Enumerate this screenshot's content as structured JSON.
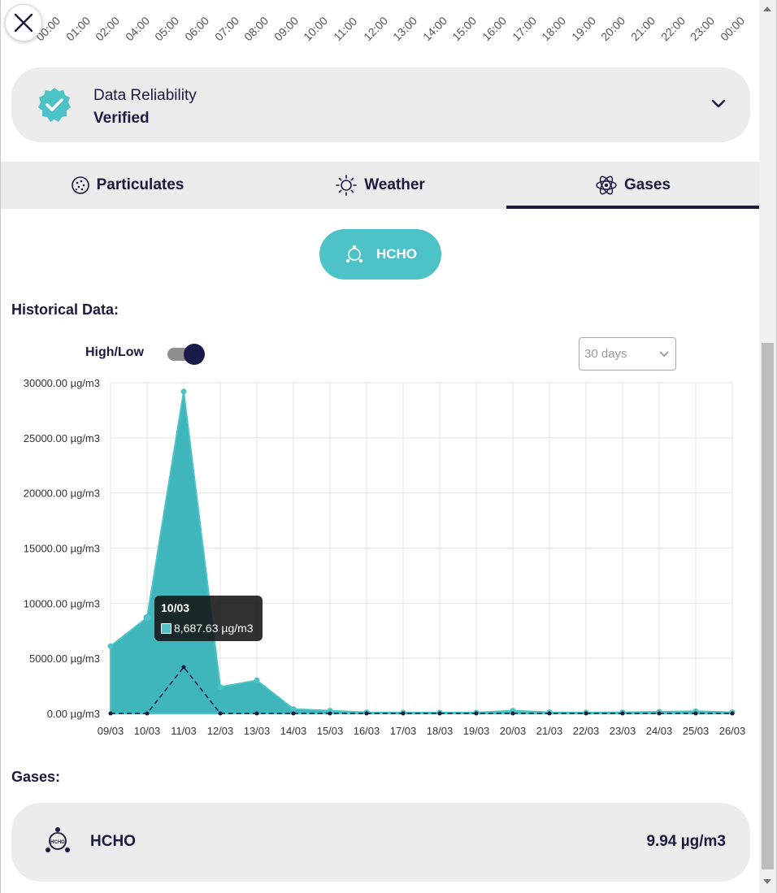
{
  "hour_axis": [
    "00:00",
    "01:00",
    "02:00",
    "04:00",
    "05:00",
    "06:00",
    "07:00",
    "08:00",
    "09:00",
    "10:00",
    "11:00",
    "12:00",
    "13:00",
    "14:00",
    "15:00",
    "16:00",
    "17:00",
    "18:00",
    "19:00",
    "20:00",
    "21:00",
    "22:00",
    "23:00",
    "00:00"
  ],
  "reliability": {
    "label": "Data Reliability",
    "value": "Verified",
    "badge_icon": "verified-badge-icon",
    "badge_color": "#4ec3c7"
  },
  "tabs": [
    {
      "label": "Particulates",
      "icon": "particulates-icon",
      "active": false
    },
    {
      "label": "Weather",
      "icon": "sun-icon",
      "active": false
    },
    {
      "label": "Gases",
      "icon": "atom-icon",
      "active": true
    }
  ],
  "gas_selector": {
    "label": "HCHO",
    "icon": "hcho-molecule-icon"
  },
  "historical": {
    "title": "Historical Data:",
    "high_low_label": "High/Low",
    "high_low_on": true,
    "range": "30 days"
  },
  "tooltip": {
    "title": "10/03",
    "value": "8,687.63 µg/m3"
  },
  "gases_section": {
    "title": "Gases:",
    "items": [
      {
        "name": "HCHO",
        "value": "9.94 µg/m3",
        "icon": "hcho-molecule-icon"
      }
    ]
  },
  "colors": {
    "accent": "#4ec3c7",
    "area_fill": "#3bb5ba",
    "dark": "#1a1a3e",
    "card_bg": "#ececec"
  },
  "chart_data": {
    "type": "area",
    "categories": [
      "09/03",
      "10/03",
      "11/03",
      "12/03",
      "13/03",
      "14/03",
      "15/03",
      "16/03",
      "17/03",
      "18/03",
      "19/03",
      "20/03",
      "21/03",
      "22/03",
      "23/03",
      "24/03",
      "25/03",
      "26/03"
    ],
    "ylim": [
      0,
      30000
    ],
    "yticks": [
      0,
      5000,
      10000,
      15000,
      20000,
      25000,
      30000
    ],
    "ytick_labels": [
      "0.00 µg/m3",
      "5000.00 µg/m3",
      "10000.00 µg/m3",
      "15000.00 µg/m3",
      "20000.00 µg/m3",
      "25000.00 µg/m3",
      "30000.00 µg/m3"
    ],
    "series": [
      {
        "values": [
          6100,
          8687.63,
          29200,
          2400,
          3000,
          400,
          250,
          100,
          80,
          80,
          80,
          250,
          100,
          80,
          100,
          150,
          200,
          100
        ],
        "style": "filled-area"
      },
      {
        "values": [
          0,
          0,
          4200,
          0,
          0,
          0,
          0,
          0,
          0,
          0,
          0,
          0,
          0,
          0,
          0,
          0,
          0,
          0
        ],
        "style": "dashed-line"
      }
    ],
    "grid": true
  }
}
